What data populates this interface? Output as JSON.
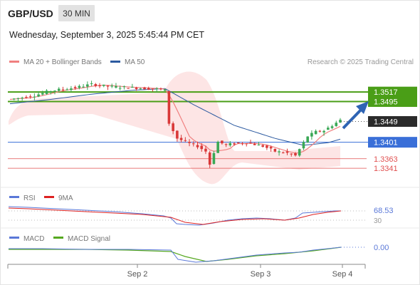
{
  "header": {
    "symbol": "GBP/USD",
    "timeframe": "30 MIN",
    "datetime": "Wednesday, September 3, 2025 5:45:44 PM CET"
  },
  "legend": {
    "ma20_label": "MA 20 + Bollinger Bands",
    "ma50_label": "MA 50",
    "copyright": "Research © 2025 Trading Central",
    "rsi_label": "RSI",
    "rsi_ma_label": "9MA",
    "macd_label": "MACD",
    "macd_signal_label": "MACD Signal"
  },
  "colors": {
    "ma20": "#f08080",
    "ma50": "#2c5aa0",
    "bollinger_fill": "#fde0e0",
    "target_green": "#4a9e17",
    "pivot_blue": "#3a6fd8",
    "support_red": "#e05050",
    "candle_up": "#3aa856",
    "candle_down": "#d93838",
    "arrow": "#2f64b4",
    "rsi": "#5a78d8",
    "rsi_ma": "#dd2222",
    "macd": "#5a78d8",
    "macd_signal": "#56a820"
  },
  "chart_data": [
    {
      "type": "candlestick",
      "title": "GBP/USD",
      "x_ticks": [
        "Sep 2",
        "Sep 3",
        "Sep 4"
      ],
      "ylim": [
        1.3305,
        1.3565
      ],
      "current_price": 1.3449,
      "levels": [
        {
          "value": 1.3517,
          "label": "1.3517",
          "kind": "target"
        },
        {
          "value": 1.3495,
          "label": "1.3495",
          "kind": "target"
        },
        {
          "value": 1.3401,
          "label": "1.3401",
          "kind": "pivot"
        },
        {
          "value": 1.3363,
          "label": "1.3363",
          "kind": "support"
        },
        {
          "value": 1.3341,
          "label": "1.3341",
          "kind": "support"
        }
      ],
      "price_path": [
        [
          0,
          1.35
        ],
        [
          6,
          1.3509
        ],
        [
          10,
          1.352
        ],
        [
          16,
          1.3527
        ],
        [
          20,
          1.3535
        ],
        [
          24,
          1.353
        ],
        [
          30,
          1.3527
        ],
        [
          36,
          1.3524
        ],
        [
          38,
          1.3521
        ],
        [
          39,
          1.3445
        ],
        [
          41,
          1.341
        ],
        [
          44,
          1.3398
        ],
        [
          46,
          1.3392
        ],
        [
          48,
          1.338
        ],
        [
          49,
          1.335
        ],
        [
          50,
          1.3378
        ],
        [
          51,
          1.3402
        ],
        [
          53,
          1.3395
        ],
        [
          55,
          1.3398
        ],
        [
          58,
          1.34
        ],
        [
          62,
          1.3392
        ],
        [
          65,
          1.338
        ],
        [
          68,
          1.3376
        ],
        [
          70,
          1.337
        ],
        [
          71,
          1.3385
        ],
        [
          73,
          1.3415
        ],
        [
          75,
          1.3425
        ],
        [
          77,
          1.3428
        ],
        [
          79,
          1.344
        ],
        [
          81,
          1.3452
        ]
      ],
      "ma50_path": [
        [
          0,
          1.349
        ],
        [
          10,
          1.35
        ],
        [
          20,
          1.3512
        ],
        [
          30,
          1.3521
        ],
        [
          38,
          1.3525
        ],
        [
          45,
          1.3488
        ],
        [
          55,
          1.344
        ],
        [
          65,
          1.341
        ],
        [
          72,
          1.3394
        ],
        [
          78,
          1.34
        ],
        [
          81,
          1.3408
        ]
      ]
    },
    {
      "type": "line",
      "title": "RSI",
      "last_value": 68.53,
      "last_label": "68.53",
      "reference_label": "30"
    },
    {
      "type": "line",
      "title": "MACD",
      "last_value": 0.0,
      "last_label": "0.00"
    }
  ]
}
